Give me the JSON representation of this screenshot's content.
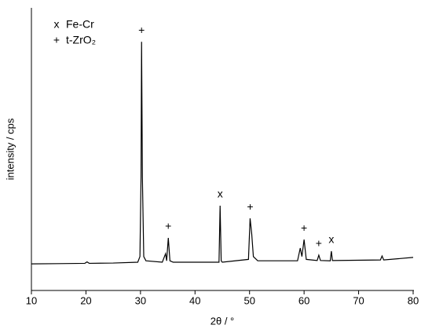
{
  "chart_data": {
    "type": "line",
    "xlabel": "2θ  /  °",
    "ylabel": "intensity  /  cps",
    "x": [
      10,
      15,
      19.8,
      20.2,
      20.6,
      25,
      29.5,
      29.9,
      30.1,
      30.2,
      30.35,
      30.6,
      31,
      34,
      34.6,
      34.8,
      35.1,
      35.4,
      36,
      44.4,
      44.6,
      44.8,
      45,
      49.8,
      50.1,
      50.4,
      50.7,
      51.5,
      58.8,
      59.3,
      59.6,
      60,
      60.4,
      62.4,
      62.7,
      63,
      64.8,
      65,
      65.2,
      74,
      74.3,
      74.6,
      80
    ],
    "values": [
      9.4,
      9.5,
      9.6,
      10.1,
      9.6,
      9.7,
      10,
      12,
      40,
      88,
      40,
      12,
      10.5,
      10,
      13,
      10.5,
      18.6,
      10.5,
      10,
      10,
      30,
      10.5,
      10,
      11,
      25.5,
      20,
      12,
      10.5,
      10.5,
      15,
      12,
      18,
      11,
      10.6,
      12.5,
      10.6,
      10.5,
      13.9,
      10.6,
      10.8,
      12.2,
      10.8,
      11.7
    ],
    "color": "#000000",
    "phases": [
      {
        "name": "Fe-Cr",
        "symbol": "x",
        "color": "#1a1aff",
        "peaks": [
          44.6,
          65
        ]
      },
      {
        "name": "t-ZrO₂",
        "symbol": "+",
        "color": "#1a8c1a",
        "peaks": [
          30.2,
          35.1,
          50.1,
          60,
          62.7
        ]
      }
    ],
    "xlim": [
      10,
      80
    ],
    "xticks": [
      10,
      20,
      30,
      40,
      50,
      60,
      70,
      80
    ],
    "ylim": [
      0,
      100
    ]
  }
}
